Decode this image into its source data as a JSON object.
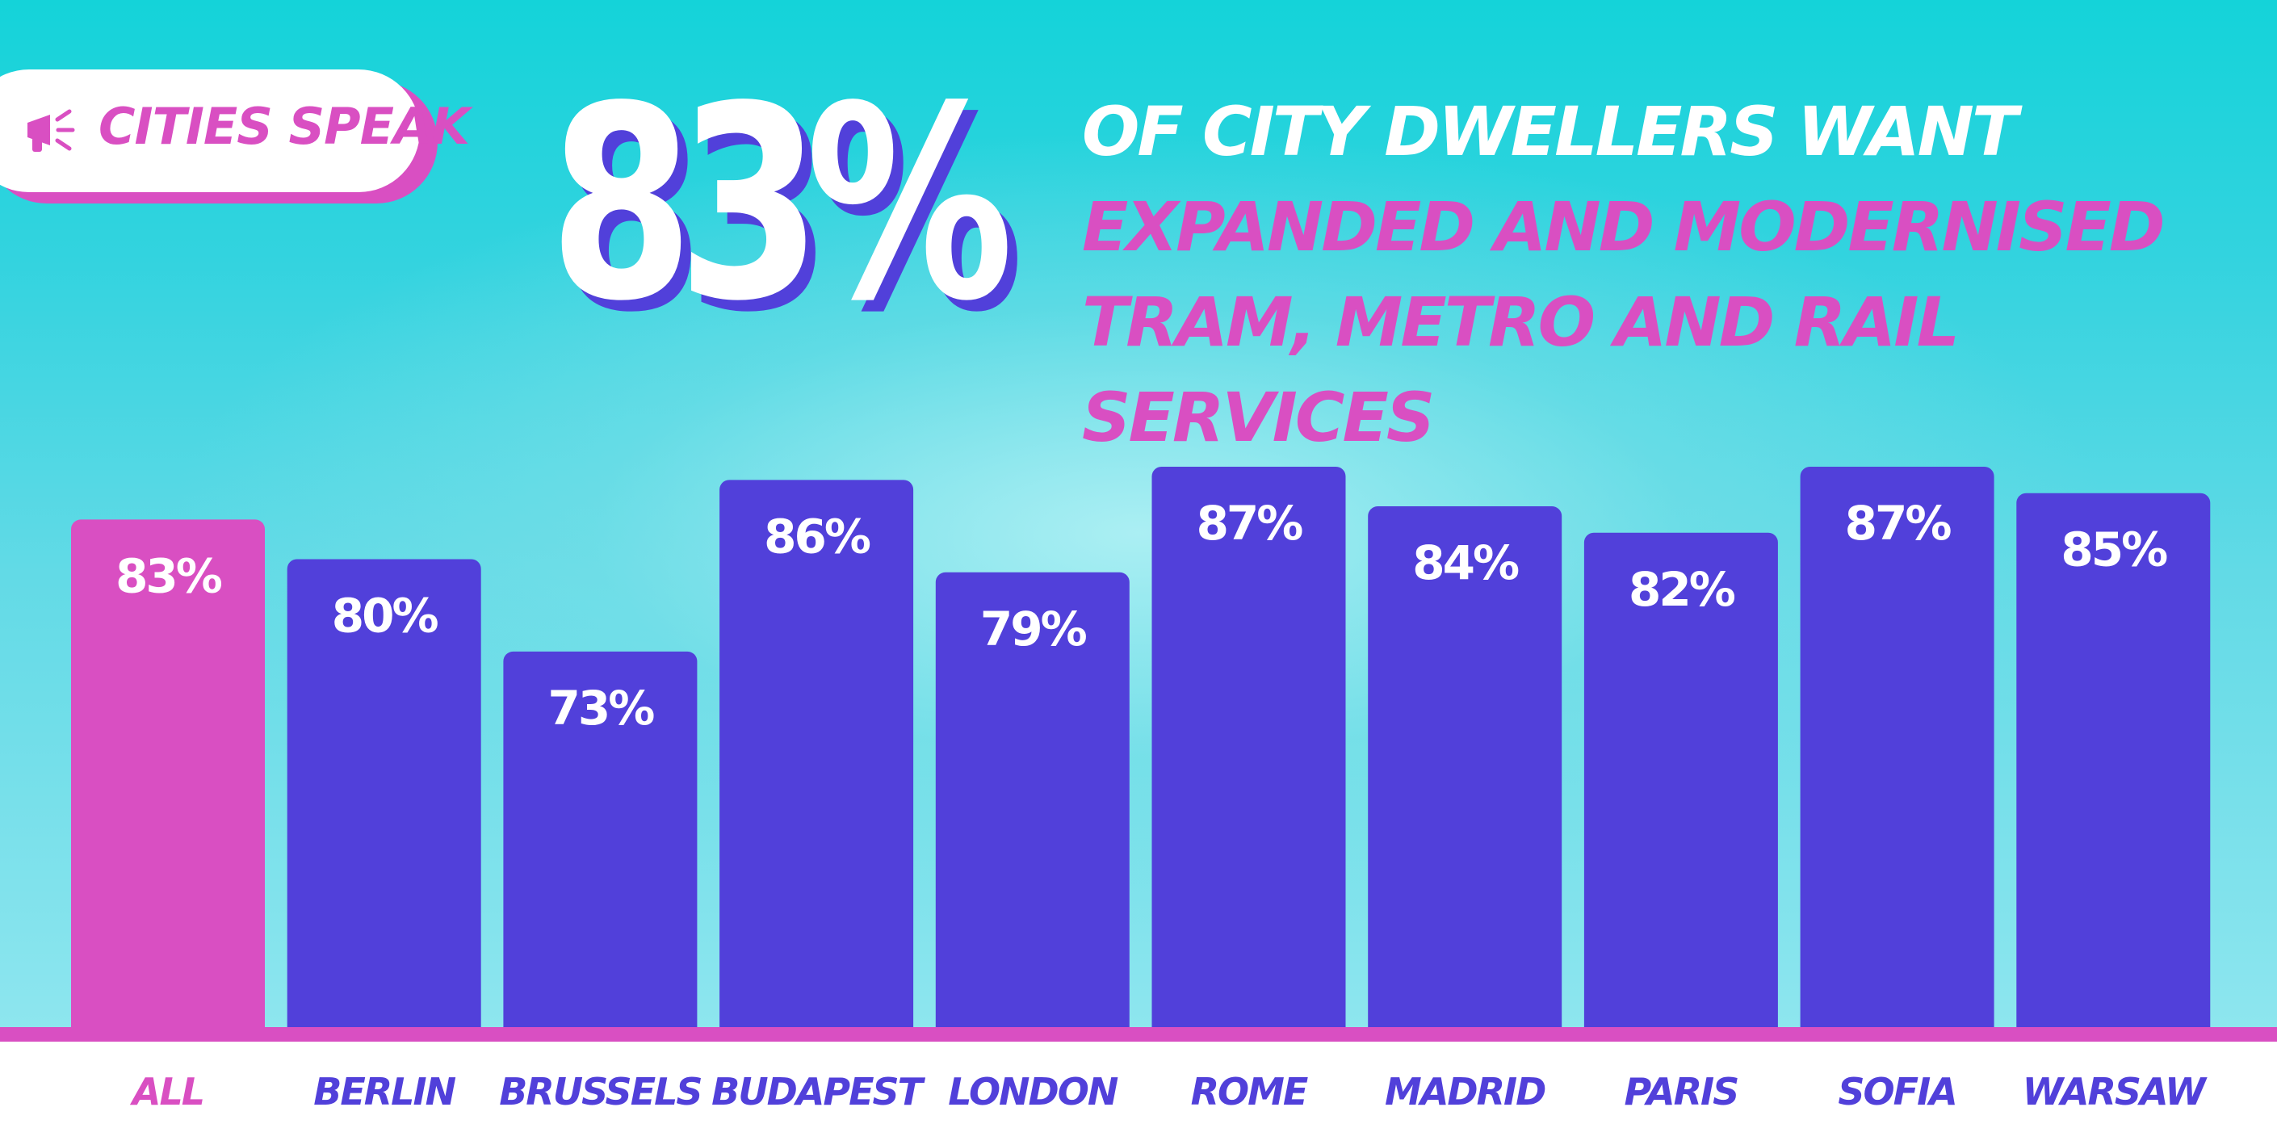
{
  "badge": {
    "label": "CITIES SPEAK",
    "icon": "megaphone-icon"
  },
  "headline": {
    "stat": "83%",
    "white_part": "OF CITY DWELLERS WANT ",
    "pink_part": "EXPANDED AND MODERNISED TRAM, METRO AND RAIL SERVICES"
  },
  "colors": {
    "accent_pink": "#d94fc2",
    "bar_purple": "#5140da",
    "background_cyan": "#14d3d9"
  },
  "chart_data": {
    "type": "bar",
    "categories": [
      "ALL",
      "BERLIN",
      "BRUSSELS",
      "BUDAPEST",
      "LONDON",
      "ROME",
      "MADRID",
      "PARIS",
      "SOFIA",
      "WARSAW"
    ],
    "values": [
      83,
      80,
      73,
      86,
      79,
      87,
      84,
      82,
      87,
      85
    ],
    "labels": [
      "83%",
      "80%",
      "73%",
      "86%",
      "79%",
      "87%",
      "84%",
      "82%",
      "87%",
      "85%"
    ],
    "highlight": "ALL",
    "unit": "%",
    "ylim": [
      0,
      87
    ],
    "grid": false
  }
}
